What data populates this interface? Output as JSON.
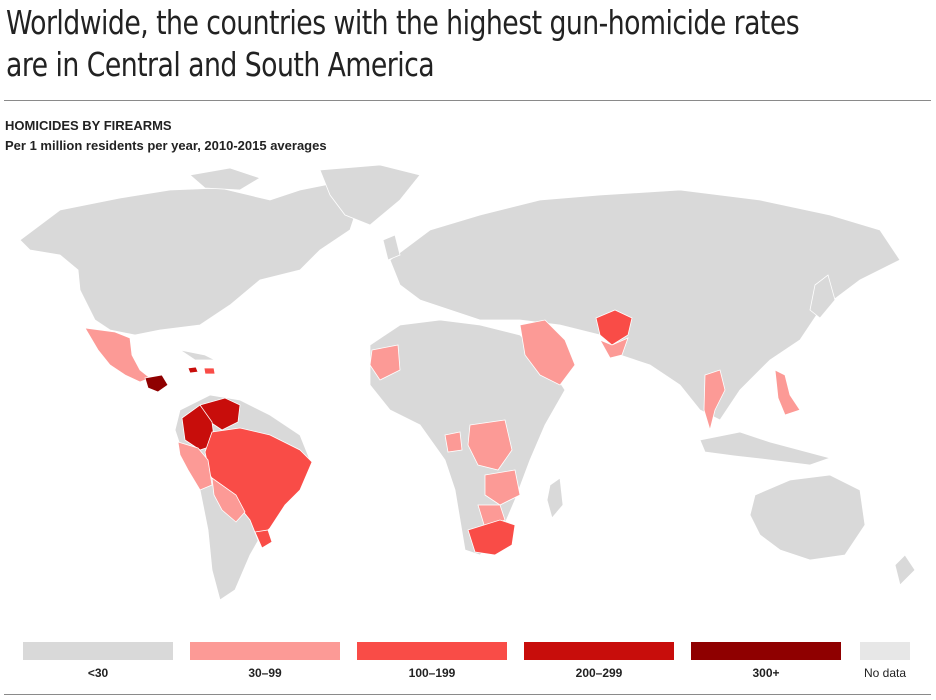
{
  "title": "Worldwide, the countries with the highest gun-homicide rates are in Central and South America",
  "subhead": "HOMICIDES BY FIREARMS",
  "subtitle": "Per 1 million residents per year, 2010-2015 averages",
  "colors": {
    "lt30": "#d9d9d9",
    "30_99": "#fc9a96",
    "100_199": "#f94c47",
    "200_299": "#c80d0b",
    "300_plus": "#8f0000",
    "no_data": "#e7e7e7",
    "border": "#ffffff"
  },
  "legend": [
    {
      "label": "<30",
      "color": "#d9d9d9"
    },
    {
      "label": "30–99",
      "color": "#fc9a96"
    },
    {
      "label": "100–199",
      "color": "#f94c47"
    },
    {
      "label": "200–299",
      "color": "#c80d0b"
    },
    {
      "label": "300+",
      "color": "#8f0000"
    },
    {
      "label": "No data",
      "color": "#e7e7e7"
    }
  ]
}
